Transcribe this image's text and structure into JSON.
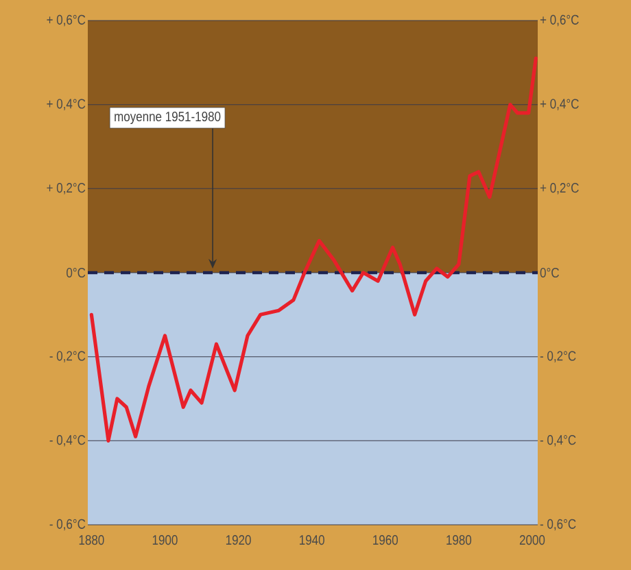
{
  "chart_data": {
    "type": "line",
    "x": [
      1880,
      1884.6,
      1887,
      1889.5,
      1892,
      1895.6,
      1900,
      1905,
      1907,
      1910,
      1914,
      1919,
      1922.5,
      1926,
      1931,
      1935,
      1938,
      1942,
      1946,
      1951,
      1954,
      1958,
      1962,
      1964,
      1968,
      1971,
      1974,
      1977,
      1980,
      1983,
      1985.4,
      1988.4,
      1994,
      1996,
      1999,
      2001
    ],
    "series": [
      {
        "color": "#e8202a",
        "values": [
          -0.1,
          -0.4,
          -0.3,
          -0.32,
          -0.39,
          -0.27,
          -0.15,
          -0.32,
          -0.28,
          -0.31,
          -0.17,
          -0.28,
          -0.15,
          -0.1,
          -0.09,
          -0.065,
          0.0,
          0.076,
          0.03,
          -0.043,
          0.0,
          -0.02,
          0.06,
          0.02,
          -0.1,
          -0.02,
          0.01,
          -0.01,
          0.02,
          0.23,
          0.24,
          0.18,
          0.4,
          0.38,
          0.38,
          0.51
        ]
      }
    ],
    "xlim": [
      1879,
      2001.5
    ],
    "xticks": [
      1880,
      1900,
      1920,
      1940,
      1960,
      1980,
      2000
    ],
    "ylim": [
      -0.6,
      0.6
    ],
    "yticks": [
      {
        "value": -0.6,
        "label": "- 0,6°C"
      },
      {
        "value": -0.4,
        "label": "- 0,4°C"
      },
      {
        "value": -0.2,
        "label": "- 0,2°C"
      },
      {
        "value": 0,
        "label": "0°C"
      },
      {
        "value": 0.2,
        "label": "+ 0,2°C"
      },
      {
        "value": 0.4,
        "label": "+ 0,4°C"
      },
      {
        "value": 0.6,
        "label": "+ 0,6°C"
      }
    ],
    "y2lim": [
      -0.6,
      0.6
    ],
    "y2ticks": [
      {
        "value": -0.6,
        "label": "- 0,6°C"
      },
      {
        "value": -0.4,
        "label": "- 0,4°C"
      },
      {
        "value": -0.2,
        "label": "- 0,2°C"
      },
      {
        "value": 0,
        "label": "0°C"
      },
      {
        "value": 0.2,
        "label": "+ 0,2°C"
      },
      {
        "value": 0.4,
        "label": "+ 0,4°C"
      },
      {
        "value": 0.6,
        "label": "+ 0,6°C"
      }
    ],
    "grid": "y",
    "marker": "none",
    "line_style": "solid",
    "ref_lines": [
      {
        "axis": "y",
        "value": 0,
        "color": "#1e2350",
        "line_style": "dashed"
      }
    ],
    "bands": [
      {
        "axis": "y",
        "from": 0,
        "to": 0.6,
        "color": "#8b5a1e"
      },
      {
        "axis": "y",
        "from": -0.6,
        "to": 0,
        "color": "#b8cce4"
      }
    ],
    "annotations": [
      {
        "text": "moyenne 1951-1980",
        "x": 1913,
        "y": 0
      }
    ]
  }
}
